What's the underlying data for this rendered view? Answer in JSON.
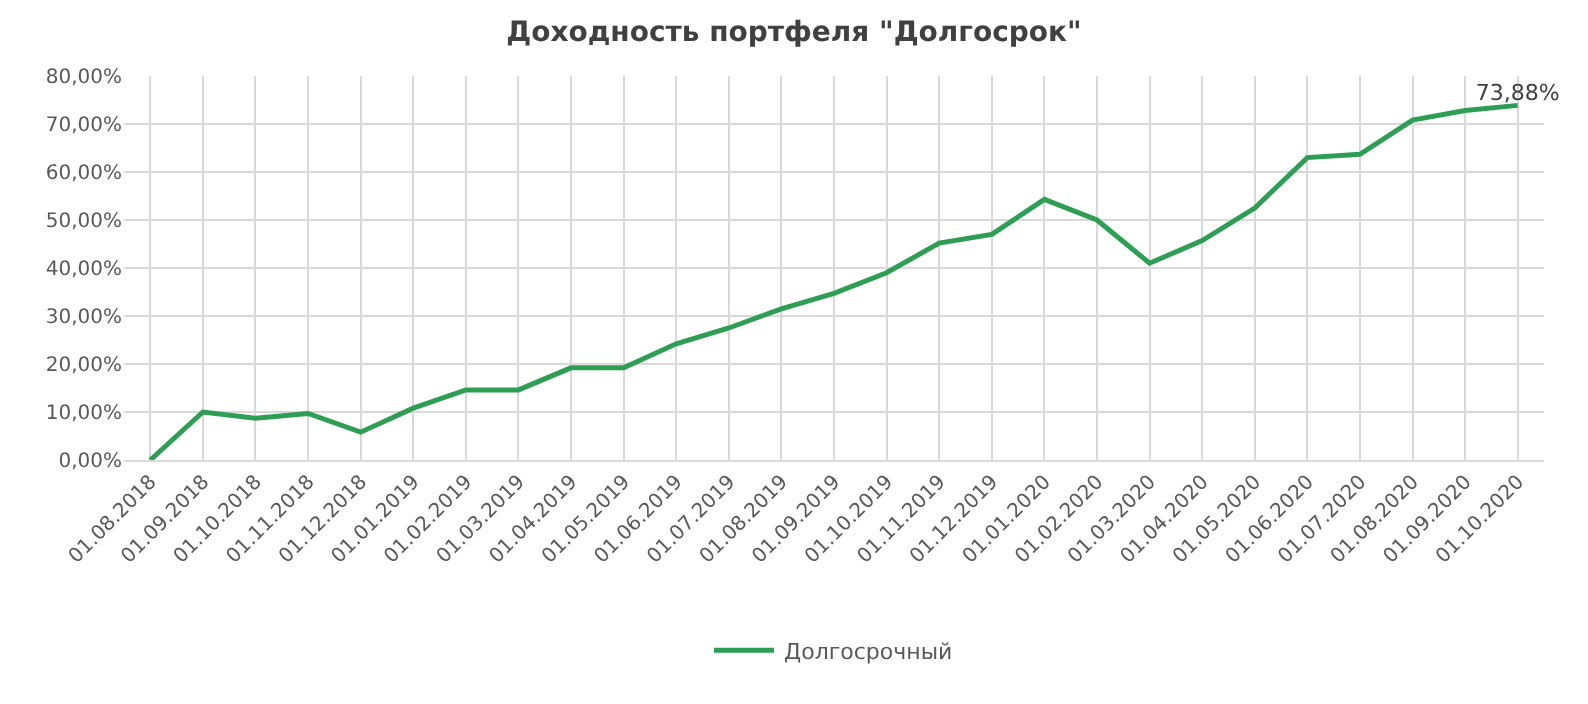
{
  "chart_data": {
    "type": "line",
    "title": "Доходность портфеля \"Долгосрок\"",
    "categories": [
      "01.08.2018",
      "01.09.2018",
      "01.10.2018",
      "01.11.2018",
      "01.12.2018",
      "01.01.2019",
      "01.02.2019",
      "01.03.2019",
      "01.04.2019",
      "01.05.2019",
      "01.06.2019",
      "01.07.2019",
      "01.08.2019",
      "01.09.2019",
      "01.10.2019",
      "01.11.2019",
      "01.12.2019",
      "01.01.2020",
      "01.02.2020",
      "01.03.2020",
      "01.04.2020",
      "01.05.2020",
      "01.06.2020",
      "01.07.2020",
      "01.08.2020",
      "01.09.2020",
      "01.10.2020"
    ],
    "series": [
      {
        "name": "Долгосрочный",
        "color": "#2e9e54",
        "values": [
          0,
          10,
          8.7,
          9.7,
          5.8,
          10.8,
          14.6,
          14.6,
          19.2,
          19.2,
          24.2,
          27.5,
          31.5,
          34.7,
          39,
          45.2,
          47,
          54.3,
          50,
          41,
          45.7,
          52.5,
          63,
          63.7,
          70.8,
          72.8,
          73.88
        ],
        "value_labels": [
          null,
          null,
          null,
          null,
          null,
          null,
          null,
          null,
          null,
          null,
          null,
          null,
          null,
          null,
          null,
          null,
          null,
          null,
          null,
          null,
          null,
          null,
          null,
          null,
          null,
          null,
          "73,88%"
        ]
      }
    ],
    "ylim": [
      0,
      80
    ],
    "yticks": [
      {
        "value": 0,
        "label": "0,00%"
      },
      {
        "value": 10,
        "label": "10,00%"
      },
      {
        "value": 20,
        "label": "20,00%"
      },
      {
        "value": 30,
        "label": "30,00%"
      },
      {
        "value": 40,
        "label": "40,00%"
      },
      {
        "value": 50,
        "label": "50,00%"
      },
      {
        "value": 60,
        "label": "60,00%"
      },
      {
        "value": 70,
        "label": "70,00%"
      },
      {
        "value": 80,
        "label": "80,00%"
      }
    ],
    "grid": true,
    "legend": "bottom",
    "marker": "none",
    "line_style": "solid"
  }
}
